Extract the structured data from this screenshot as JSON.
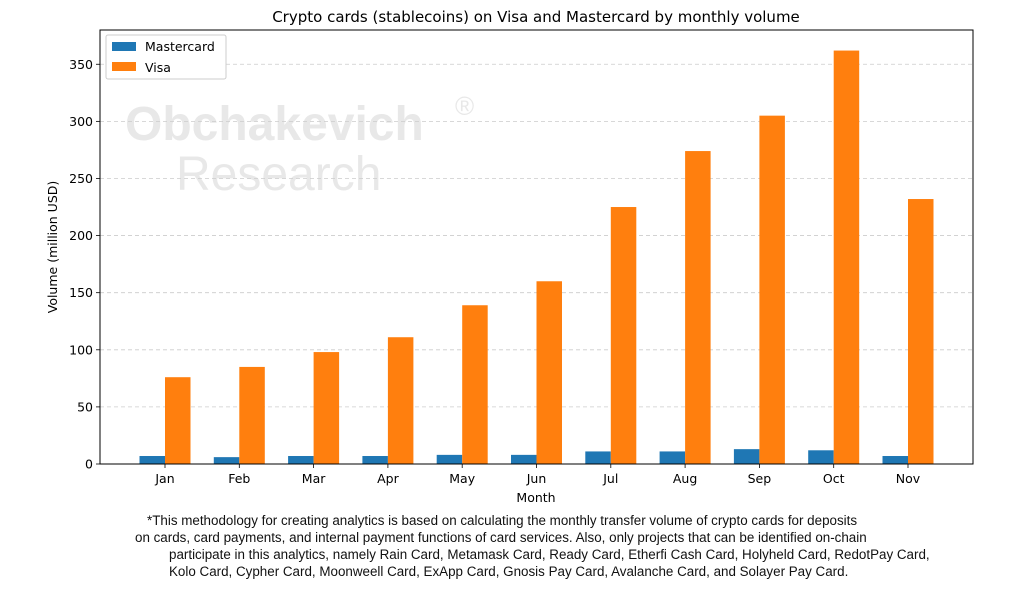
{
  "chart_data": {
    "type": "bar",
    "title": "Crypto cards (stablecoins) on Visa and Mastercard by monthly volume",
    "xlabel": "Month",
    "ylabel": "Volume (million USD)",
    "categories": [
      "Jan",
      "Feb",
      "Mar",
      "Apr",
      "May",
      "Jun",
      "Jul",
      "Aug",
      "Sep",
      "Oct",
      "Nov"
    ],
    "series": [
      {
        "name": "Mastercard",
        "color": "#1f77b4",
        "values": [
          7,
          6,
          7,
          7,
          8,
          8,
          11,
          11,
          13,
          12,
          7
        ]
      },
      {
        "name": "Visa",
        "color": "#ff7f0e",
        "values": [
          76,
          85,
          98,
          111,
          139,
          160,
          225,
          274,
          305,
          362,
          232
        ]
      }
    ],
    "ylim": [
      0,
      380
    ],
    "yticks": [
      0,
      50,
      100,
      150,
      200,
      250,
      300,
      350
    ],
    "grid": "horizontal dashed",
    "legend_position": "top-left"
  },
  "watermark": {
    "line1": "Obchakevich",
    "mark": "®",
    "line2": "Research"
  },
  "footnote": {
    "line1": "*This methodology for creating analytics is based on calculating the monthly transfer volume of crypto cards for deposits",
    "line2": "on cards, card payments, and internal payment functions of card services.  Also, only projects that can be identified on-chain",
    "line3": "participate in this analytics, namely Rain Card, Metamask Card, Ready Card, Etherfi Cash Card, Holyheld Card, RedotPay Card,",
    "line4": "Kolo Card, Cypher Card, Moonweell Card, ExApp Card, Gnosis Pay Card, Avalanche Card, and Solayer Pay Card."
  }
}
